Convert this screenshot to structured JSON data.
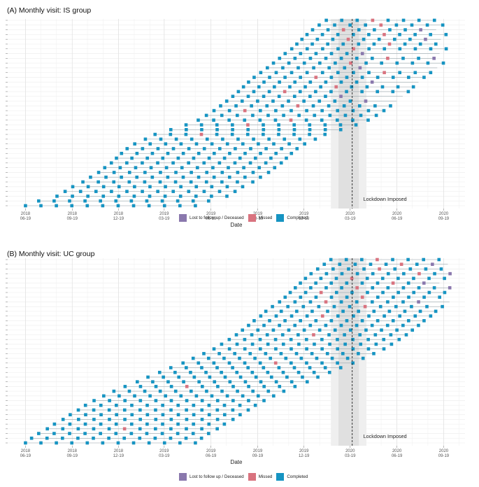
{
  "colors": {
    "completed": "#1694c2",
    "missed": "#d9737f",
    "lost": "#8a78ad",
    "grid_major": "#e3e3e3",
    "grid_minor": "#f1f1f1",
    "shade_outer": "#efefef",
    "shade_inner": "#e0e0e0"
  },
  "legend": [
    {
      "key": "lost",
      "label": "Lost to follow up / Deceased"
    },
    {
      "key": "missed",
      "label": "Missed"
    },
    {
      "key": "completed",
      "label": "Completed"
    }
  ],
  "chart_data": [
    {
      "type": "scatter",
      "panel": "A",
      "title": "(A) Monthly visit: IS group",
      "xlabel": "Date",
      "ylabel": "",
      "x_ticks": [
        {
          "date": "2018-06-19",
          "year": "2018",
          "md": "06-19"
        },
        {
          "date": "2018-09-19",
          "year": "2018",
          "md": "09-19"
        },
        {
          "date": "2018-12-19",
          "year": "2018",
          "md": "12-19"
        },
        {
          "date": "2019-03-19",
          "year": "2019",
          "md": "03-19"
        },
        {
          "date": "2019-06-19",
          "year": "2019",
          "md": "06-19"
        },
        {
          "date": "2019-09-19",
          "year": "2019",
          "md": "09-19"
        },
        {
          "date": "2019-12-19",
          "year": "2019",
          "md": "12-19"
        },
        {
          "date": "2020-03-19",
          "year": "2020",
          "md": "03-19"
        },
        {
          "date": "2020-06-19",
          "year": "2020",
          "md": "06-19"
        },
        {
          "date": "2020-09-19",
          "year": "2020",
          "md": "09-19"
        }
      ],
      "xlim": [
        "2018-05-15",
        "2020-10-31"
      ],
      "participants": 40,
      "lockdown": {
        "date": "2020-03-23",
        "label": "Lockdown Imposed"
      },
      "shaded_period": [
        "2020-02-10",
        "2020-04-20"
      ],
      "shaded_core": [
        "2020-02-25",
        "2020-04-05"
      ],
      "enrollment": {
        "first_date": "2018-06-19",
        "dates": [
          "2018-06-19",
          "2018-07-15",
          "2018-08-20",
          "2018-09-05",
          "2018-09-20",
          "2018-10-10",
          "2018-10-25",
          "2018-11-10",
          "2018-11-22",
          "2018-12-05",
          "2018-12-15",
          "2018-12-25",
          "2019-01-05",
          "2019-01-20",
          "2019-02-10",
          "2019-03-01",
          "2019-04-01",
          "2019-05-01",
          "2019-05-25",
          "2019-06-10",
          "2019-06-25",
          "2019-07-08",
          "2019-07-20",
          "2019-08-01",
          "2019-08-12",
          "2019-08-22",
          "2019-09-01",
          "2019-09-12",
          "2019-09-25",
          "2019-10-08",
          "2019-10-20",
          "2019-11-01",
          "2019-11-12",
          "2019-11-25",
          "2019-12-05",
          "2019-12-15",
          "2019-12-25",
          "2020-01-05",
          "2020-01-18",
          "2020-02-01"
        ]
      },
      "max_visits": 12,
      "study_end": "2020-09-30",
      "missed_visits": [
        [
          15,
          3
        ],
        [
          17,
          4
        ],
        [
          18,
          6
        ],
        [
          20,
          2
        ],
        [
          21,
          5
        ],
        [
          24,
          3
        ],
        [
          25,
          6
        ],
        [
          27,
          4
        ],
        [
          28,
          8
        ],
        [
          30,
          5
        ],
        [
          31,
          7
        ],
        [
          33,
          4
        ],
        [
          34,
          6
        ],
        [
          35,
          3
        ],
        [
          36,
          5
        ],
        [
          37,
          2
        ],
        [
          38,
          4
        ],
        [
          39,
          3
        ]
      ],
      "lost_visits": [
        [
          22,
          9
        ],
        [
          23,
          7
        ],
        [
          26,
          8
        ],
        [
          29,
          6
        ],
        [
          31,
          10
        ],
        [
          32,
          5
        ],
        [
          35,
          8
        ],
        [
          37,
          7
        ],
        [
          38,
          9
        ],
        [
          39,
          8
        ]
      ]
    },
    {
      "type": "scatter",
      "panel": "B",
      "title": "(B) Monthly visit: UC group",
      "xlabel": "Date",
      "ylabel": "",
      "x_ticks": [
        {
          "date": "2018-06-19",
          "year": "2018",
          "md": "06-19"
        },
        {
          "date": "2018-09-19",
          "year": "2018",
          "md": "09-19"
        },
        {
          "date": "2018-12-19",
          "year": "2018",
          "md": "12-19"
        },
        {
          "date": "2019-03-19",
          "year": "2019",
          "md": "03-19"
        },
        {
          "date": "2019-06-19",
          "year": "2019",
          "md": "06-19"
        },
        {
          "date": "2019-09-19",
          "year": "2019",
          "md": "09-19"
        },
        {
          "date": "2019-12-19",
          "year": "2019",
          "md": "12-19"
        },
        {
          "date": "2020-03-19",
          "year": "2020",
          "md": "03-19"
        },
        {
          "date": "2020-06-19",
          "year": "2020",
          "md": "06-19"
        },
        {
          "date": "2020-09-19",
          "year": "2020",
          "md": "09-19"
        }
      ],
      "xlim": [
        "2018-05-15",
        "2020-10-31"
      ],
      "participants": 40,
      "lockdown": {
        "date": "2020-03-23",
        "label": "Lockdown Imposed"
      },
      "shaded_period": [
        "2020-02-10",
        "2020-04-20"
      ],
      "shaded_core": [
        "2020-02-25",
        "2020-04-05"
      ],
      "enrollment": {
        "first_date": "2018-06-19",
        "dates": [
          "2018-06-19",
          "2018-07-01",
          "2018-07-15",
          "2018-08-01",
          "2018-08-15",
          "2018-09-01",
          "2018-09-15",
          "2018-10-01",
          "2018-10-15",
          "2018-11-01",
          "2018-11-20",
          "2018-12-10",
          "2019-01-01",
          "2019-01-25",
          "2019-02-15",
          "2019-03-10",
          "2019-04-01",
          "2019-04-25",
          "2019-05-15",
          "2019-06-05",
          "2019-06-25",
          "2019-07-10",
          "2019-07-25",
          "2019-08-08",
          "2019-08-20",
          "2019-09-01",
          "2019-09-12",
          "2019-09-25",
          "2019-10-05",
          "2019-10-18",
          "2019-11-01",
          "2019-11-12",
          "2019-11-22",
          "2019-12-02",
          "2019-12-12",
          "2019-12-22",
          "2020-01-02",
          "2020-01-15",
          "2020-01-28",
          "2020-02-10"
        ]
      },
      "max_visits": 12,
      "study_end": "2020-10-10",
      "missed_visits": [
        [
          3,
          5
        ],
        [
          12,
          4
        ],
        [
          17,
          6
        ],
        [
          23,
          5
        ],
        [
          27,
          4
        ],
        [
          29,
          6
        ],
        [
          30,
          3
        ],
        [
          31,
          5
        ],
        [
          32,
          2
        ],
        [
          33,
          4
        ],
        [
          34,
          6
        ],
        [
          35,
          3
        ],
        [
          36,
          7
        ],
        [
          37,
          4
        ],
        [
          38,
          5
        ],
        [
          39,
          3
        ]
      ],
      "lost_visits": [
        [
          30,
          9
        ],
        [
          33,
          10
        ],
        [
          34,
          8
        ],
        [
          36,
          9
        ],
        [
          37,
          10
        ],
        [
          38,
          7
        ],
        [
          39,
          8
        ]
      ]
    }
  ]
}
